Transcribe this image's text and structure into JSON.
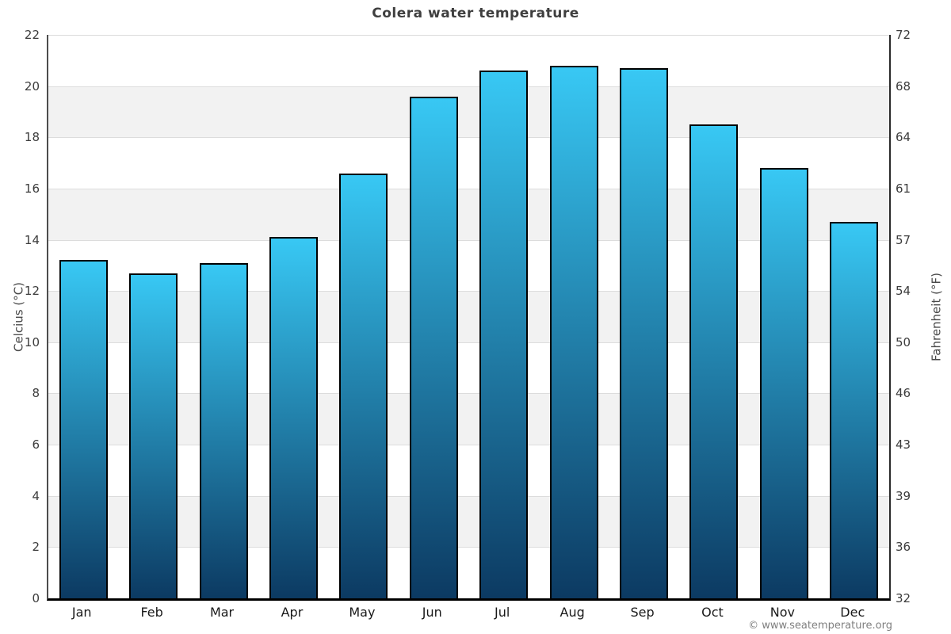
{
  "title": "Colera water temperature",
  "footer": {
    "text": "© www.seatemperature.org"
  },
  "chart_data": {
    "type": "bar",
    "title": "Colera water temperature",
    "categories": [
      "Jan",
      "Feb",
      "Mar",
      "Apr",
      "May",
      "Jun",
      "Jul",
      "Aug",
      "Sep",
      "Oct",
      "Nov",
      "Dec"
    ],
    "values": [
      13.2,
      12.7,
      13.1,
      14.1,
      16.6,
      19.6,
      20.6,
      20.8,
      20.7,
      18.5,
      16.8,
      14.7
    ],
    "xlabel": "",
    "ylabel_left": "Celcius (°C)",
    "ylabel_right": "Fahrenheit (°F)",
    "ylim": [
      0,
      22
    ],
    "yticks_celsius": [
      22,
      20,
      18,
      16,
      14,
      12,
      10,
      8,
      6,
      4,
      2,
      0
    ],
    "yticks_fahrenheit": [
      "72",
      "68",
      "64",
      "61",
      "57",
      "54",
      "50",
      "46",
      "43",
      "39",
      "36",
      "32"
    ],
    "gray_bands_celsius": [
      [
        18,
        20
      ],
      [
        14,
        16
      ],
      [
        10,
        12
      ],
      [
        6,
        8
      ],
      [
        2,
        4
      ]
    ],
    "grid": "on",
    "legend": "none",
    "colors": {
      "bar_gradient_top": "#38c8f4",
      "bar_gradient_bottom": "#0c3a62",
      "bar_border": "#000000",
      "band": "#f2f2f2",
      "gridline": "#dcdcdc",
      "title_text": "#3f3f3f",
      "tick_text": "#3c3c3c",
      "footer_text": "#808080"
    }
  }
}
